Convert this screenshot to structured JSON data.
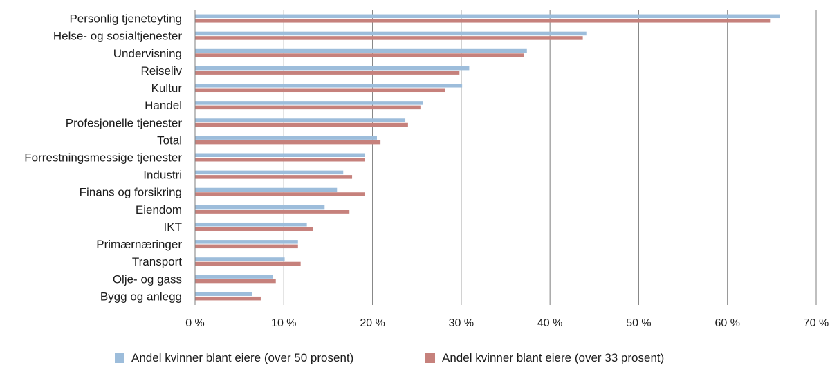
{
  "chart_data": {
    "type": "bar",
    "orientation": "horizontal",
    "categories": [
      "Personlig tjeneteyting",
      "Helse- og sosialtjenester",
      "Undervisning",
      "Reiseliv",
      "Kultur",
      "Handel",
      "Profesjonelle tjenester",
      "Total",
      "Forrestningsmessige tjenester",
      "Industri",
      "Finans og forsikring",
      "Eiendom",
      "IKT",
      "Primærnæringer",
      "Transport",
      "Olje- og gass",
      "Bygg og anlegg"
    ],
    "series": [
      {
        "name": "Andel kvinner blant eiere (over 50 prosent)",
        "color": "#9dbddb",
        "values": [
          65.9,
          44.1,
          37.4,
          30.9,
          30.1,
          25.7,
          23.7,
          20.5,
          19.1,
          16.7,
          16.0,
          14.6,
          12.6,
          11.6,
          10.1,
          8.8,
          6.4
        ]
      },
      {
        "name": "Andel kvinner blant eiere (over 33 prosent)",
        "color": "#c6817c",
        "values": [
          64.8,
          43.7,
          37.1,
          29.8,
          28.2,
          25.4,
          24.0,
          20.9,
          19.1,
          17.7,
          19.1,
          17.4,
          13.3,
          11.6,
          11.9,
          9.1,
          7.4
        ]
      }
    ],
    "xlim": [
      0,
      70
    ],
    "ticks": [
      0,
      10,
      20,
      30,
      40,
      50,
      60,
      70
    ],
    "tick_labels": [
      "0 %",
      "10 %",
      "20 %",
      "30 %",
      "40 %",
      "50 %",
      "60 %",
      "70 %"
    ],
    "grid": true,
    "legend_position": "bottom",
    "gridline_color": "#7f7f7f"
  }
}
